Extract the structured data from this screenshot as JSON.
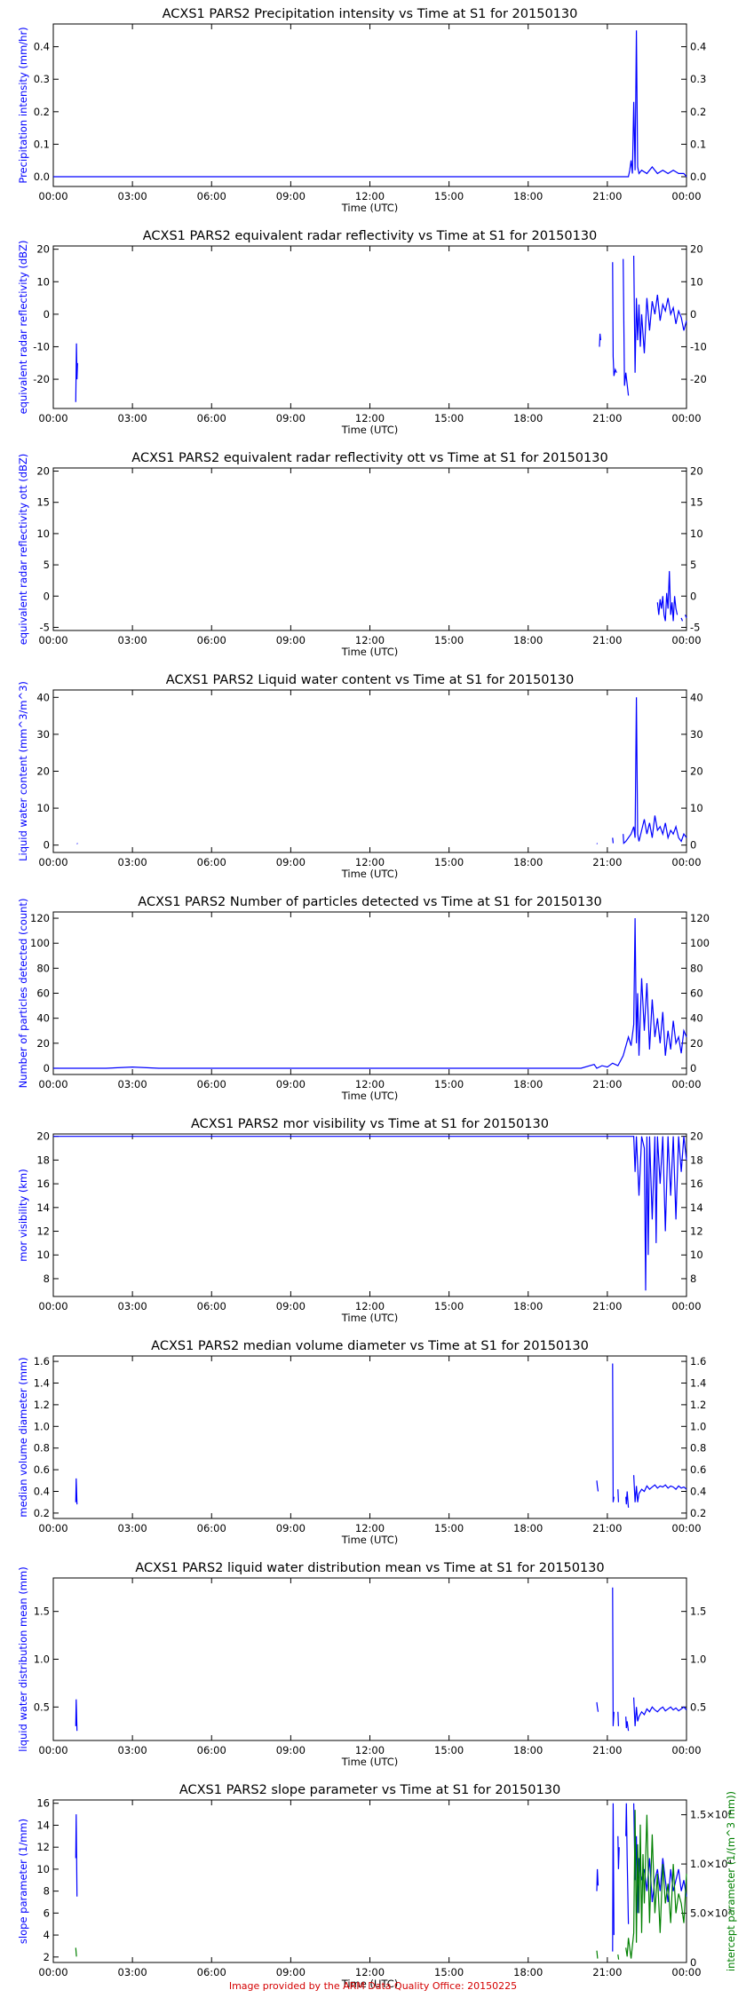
{
  "colors": {
    "primary": "#0000ff",
    "secondary": "#008000",
    "axis": "#000000",
    "footer": "#d40000"
  },
  "x_ticks": [
    "00:00",
    "03:00",
    "06:00",
    "09:00",
    "12:00",
    "15:00",
    "18:00",
    "21:00",
    "00:00"
  ],
  "footer": "Image provided by the ARM Data Quality Office: 20150225",
  "chart_data": [
    {
      "type": "line",
      "title": "ACXS1 PARS2 Precipitation intensity vs Time at S1 for 20150130",
      "xlabel": "Time (UTC)",
      "ylabel": "Precipitation intensity (mm/hr)",
      "xlim": [
        0,
        24
      ],
      "ylim": [
        -0.03,
        0.47
      ],
      "yticks": [
        0.0,
        0.1,
        0.2,
        0.3,
        0.4
      ],
      "ytick_labels": [
        "0.0",
        "0.1",
        "0.2",
        "0.3",
        "0.4"
      ],
      "series": [
        {
          "x": [
            0,
            21.8,
            21.85,
            21.9,
            21.95,
            22.0,
            22.05,
            22.1,
            22.15,
            22.2,
            22.3,
            22.5,
            22.7,
            22.9,
            23.1,
            23.3,
            23.5,
            23.7,
            23.9,
            24.0
          ],
          "y": [
            0,
            0,
            0.02,
            0.05,
            0.01,
            0.23,
            0.02,
            0.45,
            0.03,
            0.01,
            0.02,
            0.01,
            0.03,
            0.01,
            0.02,
            0.01,
            0.02,
            0.01,
            0.01,
            0.0
          ]
        }
      ]
    },
    {
      "type": "line",
      "title": "ACXS1 PARS2 equivalent radar reflectivity vs Time at S1 for 20150130",
      "xlabel": "Time (UTC)",
      "ylabel": "equivalent radar reflectivity (dBZ)",
      "xlim": [
        0,
        24
      ],
      "ylim": [
        -29,
        21
      ],
      "yticks": [
        -20,
        -10,
        0,
        10,
        20
      ],
      "ytick_labels": [
        "-20",
        "-10",
        "0",
        "10",
        "20"
      ],
      "series": [
        {
          "x": [
            0.85,
            0.88,
            0.9,
            0.92,
            null,
            20.7,
            20.72,
            20.75,
            null,
            21.2,
            21.22,
            21.25,
            21.3,
            21.35,
            null,
            21.6,
            21.65,
            21.7,
            21.8,
            null,
            22.0,
            22.05,
            22.1,
            22.15,
            22.2,
            22.25,
            22.3,
            22.4,
            22.5,
            22.6,
            22.7,
            22.8,
            22.9,
            23.0,
            23.1,
            23.2,
            23.3,
            23.4,
            23.5,
            23.6,
            23.7,
            23.8,
            23.9,
            24.0
          ],
          "y": [
            -27,
            -9,
            -20,
            -15,
            null,
            -10,
            -6,
            -8,
            null,
            16,
            -13,
            -19,
            -17,
            -18,
            null,
            17,
            -22,
            -18,
            -25,
            null,
            18,
            -18,
            5,
            -8,
            3,
            -10,
            0,
            -12,
            5,
            -5,
            4,
            0,
            6,
            -2,
            3,
            1,
            5,
            0,
            2,
            -3,
            1,
            -1,
            -5,
            -2
          ]
        }
      ]
    },
    {
      "type": "line",
      "title": "ACXS1 PARS2 equivalent radar reflectivity ott vs Time at S1 for 20150130",
      "xlabel": "Time (UTC)",
      "ylabel": "equivalent radar reflectivity ott (dBZ)",
      "xlim": [
        0,
        24
      ],
      "ylim": [
        -5.5,
        20.5
      ],
      "yticks": [
        -5,
        0,
        5,
        10,
        15,
        20
      ],
      "ytick_labels": [
        "-5",
        "0",
        "5",
        "10",
        "15",
        "20"
      ],
      "series": [
        {
          "x": [
            22.9,
            22.95,
            23.0,
            23.05,
            23.1,
            23.15,
            23.2,
            23.25,
            23.3,
            23.35,
            23.4,
            23.45,
            23.5,
            23.55,
            23.6,
            23.65,
            null,
            23.8,
            23.85,
            null,
            23.95,
            24.0
          ],
          "y": [
            -1,
            -3,
            -0.5,
            -2,
            0,
            -3,
            -4,
            0.5,
            -2,
            4,
            -3,
            -1,
            -4,
            0,
            -2,
            -3,
            null,
            -3.5,
            -4,
            null,
            -3,
            -3.5
          ]
        }
      ]
    },
    {
      "type": "line",
      "title": "ACXS1 PARS2 Liquid water content vs Time at S1 for 20150130",
      "xlabel": "Time (UTC)",
      "ylabel": "Liquid water content (mm^3/m^3)",
      "xlim": [
        0,
        24
      ],
      "ylim": [
        -2,
        42
      ],
      "yticks": [
        0,
        10,
        20,
        30,
        40
      ],
      "ytick_labels": [
        "0",
        "10",
        "20",
        "30",
        "40"
      ],
      "series": [
        {
          "x": [
            0.9,
            0.92,
            null,
            20.6,
            20.62,
            null,
            21.2,
            21.22,
            null,
            21.6,
            21.62,
            21.7,
            21.8,
            21.9,
            22.0,
            22.05,
            22.1,
            22.15,
            22.2,
            22.3,
            22.4,
            22.5,
            22.6,
            22.7,
            22.8,
            22.9,
            23.0,
            23.1,
            23.2,
            23.3,
            23.4,
            23.5,
            23.6,
            23.7,
            23.8,
            23.9,
            24.0
          ],
          "y": [
            0.5,
            0.3,
            null,
            0.5,
            0.3,
            null,
            2,
            0.5,
            null,
            3,
            0.5,
            1,
            2,
            3,
            5,
            2,
            40,
            3,
            1,
            4,
            7,
            3,
            6,
            2,
            8,
            4,
            5,
            3,
            6,
            2,
            4,
            3,
            5,
            2,
            1,
            3,
            2
          ]
        }
      ]
    },
    {
      "type": "line",
      "title": "ACXS1 PARS2 Number of particles detected vs Time at S1 for 20150130",
      "xlabel": "Time (UTC)",
      "ylabel": "Number of particles detected (count)",
      "xlim": [
        0,
        24
      ],
      "ylim": [
        -5,
        125
      ],
      "yticks": [
        0,
        20,
        40,
        60,
        80,
        100,
        120
      ],
      "ytick_labels": [
        "0",
        "20",
        "40",
        "60",
        "80",
        "100",
        "120"
      ],
      "series": [
        {
          "x": [
            0,
            2,
            3,
            4,
            20,
            20.5,
            20.6,
            20.8,
            21.0,
            21.2,
            21.4,
            21.6,
            21.8,
            21.9,
            22.0,
            22.05,
            22.1,
            22.15,
            22.2,
            22.3,
            22.4,
            22.5,
            22.6,
            22.7,
            22.8,
            22.9,
            23.0,
            23.1,
            23.2,
            23.3,
            23.4,
            23.5,
            23.6,
            23.7,
            23.8,
            23.9,
            24.0
          ],
          "y": [
            0,
            0,
            1,
            0,
            0,
            3,
            0,
            2,
            1,
            4,
            2,
            10,
            25,
            18,
            35,
            120,
            20,
            60,
            10,
            72,
            30,
            68,
            15,
            55,
            25,
            40,
            20,
            45,
            10,
            30,
            15,
            38,
            20,
            25,
            12,
            30,
            25
          ]
        }
      ]
    },
    {
      "type": "line",
      "title": "ACXS1 PARS2 mor visibility vs Time at S1 for 20150130",
      "xlabel": "Time (UTC)",
      "ylabel": "mor visibility (km)",
      "xlim": [
        0,
        24
      ],
      "ylim": [
        6.5,
        20.2
      ],
      "yticks": [
        8,
        10,
        12,
        14,
        16,
        18,
        20
      ],
      "ytick_labels": [
        "8",
        "10",
        "12",
        "14",
        "16",
        "18",
        "20"
      ],
      "series": [
        {
          "x": [
            0,
            22.0,
            22.05,
            22.1,
            22.2,
            22.3,
            22.4,
            22.45,
            22.5,
            22.55,
            22.6,
            22.7,
            22.8,
            22.85,
            22.9,
            23.0,
            23.1,
            23.2,
            23.3,
            23.4,
            23.5,
            23.6,
            23.7,
            23.8,
            23.9,
            24.0
          ],
          "y": [
            20,
            20,
            17,
            20,
            15,
            20,
            19,
            7,
            20,
            10,
            20,
            13,
            20,
            11,
            20,
            16,
            20,
            12,
            20,
            15,
            20,
            13,
            20,
            17,
            20,
            18
          ]
        }
      ]
    },
    {
      "type": "line",
      "title": "ACXS1 PARS2 median volume diameter vs Time at S1 for 20150130",
      "xlabel": "Time (UTC)",
      "ylabel": "median volume diameter (mm)",
      "xlim": [
        0,
        24
      ],
      "ylim": [
        0.15,
        1.65
      ],
      "yticks": [
        0.2,
        0.4,
        0.6,
        0.8,
        1.0,
        1.2,
        1.4,
        1.6
      ],
      "ytick_labels": [
        "0.2",
        "0.4",
        "0.6",
        "0.8",
        "1.0",
        "1.2",
        "1.4",
        "1.6"
      ],
      "series": [
        {
          "x": [
            0.85,
            0.87,
            0.9,
            null,
            20.6,
            20.62,
            20.65,
            null,
            21.2,
            21.22,
            21.25,
            null,
            21.4,
            21.42,
            null,
            21.7,
            21.72,
            21.75,
            21.8,
            null,
            22.0,
            22.05,
            22.1,
            22.15,
            22.2,
            22.3,
            22.4,
            22.5,
            22.6,
            22.7,
            22.8,
            22.9,
            23.0,
            23.1,
            23.2,
            23.3,
            23.4,
            23.5,
            23.6,
            23.7,
            23.8,
            23.9,
            24.0
          ],
          "y": [
            0.3,
            0.52,
            0.28,
            null,
            0.5,
            0.45,
            0.4,
            null,
            1.58,
            0.3,
            0.35,
            null,
            0.42,
            0.3,
            null,
            0.35,
            0.28,
            0.4,
            0.25,
            null,
            0.55,
            0.3,
            0.45,
            0.3,
            0.38,
            0.42,
            0.4,
            0.45,
            0.42,
            0.44,
            0.46,
            0.43,
            0.45,
            0.44,
            0.46,
            0.43,
            0.45,
            0.44,
            0.42,
            0.45,
            0.43,
            0.44,
            0.42
          ]
        }
      ]
    },
    {
      "type": "line",
      "title": "ACXS1 PARS2 liquid water distribution mean vs Time at S1 for 20150130",
      "xlabel": "Time (UTC)",
      "ylabel": "liquid water distribution mean (mm)",
      "xlim": [
        0,
        24
      ],
      "ylim": [
        0.15,
        1.85
      ],
      "yticks": [
        0.5,
        1.0,
        1.5
      ],
      "ytick_labels": [
        "0.5",
        "1.0",
        "1.5"
      ],
      "series": [
        {
          "x": [
            0.85,
            0.87,
            0.9,
            null,
            20.6,
            20.62,
            20.65,
            null,
            21.2,
            21.22,
            21.25,
            null,
            21.4,
            21.42,
            null,
            21.7,
            21.72,
            21.75,
            21.8,
            null,
            22.0,
            22.05,
            22.1,
            22.15,
            22.2,
            22.3,
            22.4,
            22.5,
            22.6,
            22.7,
            22.8,
            22.9,
            23.0,
            23.1,
            23.2,
            23.3,
            23.4,
            23.5,
            23.6,
            23.7,
            23.8,
            23.9,
            24.0
          ],
          "y": [
            0.3,
            0.58,
            0.25,
            null,
            0.55,
            0.5,
            0.45,
            null,
            1.75,
            0.3,
            0.45,
            null,
            0.45,
            0.3,
            null,
            0.4,
            0.28,
            0.35,
            0.25,
            null,
            0.6,
            0.3,
            0.5,
            0.35,
            0.4,
            0.45,
            0.42,
            0.48,
            0.45,
            0.5,
            0.47,
            0.45,
            0.48,
            0.5,
            0.46,
            0.48,
            0.5,
            0.47,
            0.49,
            0.46,
            0.48,
            0.5,
            0.47
          ]
        }
      ]
    },
    {
      "type": "line",
      "title": "ACXS1 PARS2 slope parameter vs Time at S1 for 20150130",
      "xlabel": "Time (UTC)",
      "ylabel": "slope parameter (1/mm)",
      "ylabel_right": "intercept parameter (1/(m^3 mm))",
      "xlim": [
        0,
        24
      ],
      "ylim": [
        1.5,
        16.3
      ],
      "yticks": [
        2,
        4,
        6,
        8,
        10,
        12,
        14,
        16
      ],
      "ytick_labels": [
        "2",
        "4",
        "6",
        "8",
        "10",
        "12",
        "14",
        "16"
      ],
      "ylim_right": [
        0,
        16500
      ],
      "yticks_right": [
        0,
        5000,
        10000,
        15000
      ],
      "ytick_labels_right": [
        "0",
        "5.0×10³",
        "1.0×10⁴",
        "1.5×10⁴"
      ],
      "series": [
        {
          "axis": "left",
          "color": "primary",
          "x": [
            0.85,
            0.87,
            0.9,
            null,
            20.6,
            20.62,
            20.65,
            null,
            21.2,
            21.22,
            21.25,
            null,
            21.4,
            21.42,
            21.45,
            null,
            21.7,
            21.72,
            21.75,
            21.8,
            null,
            22.0,
            22.05,
            22.1,
            22.15,
            22.2,
            22.3,
            22.4,
            22.5,
            22.6,
            22.7,
            22.8,
            22.9,
            23.0,
            23.1,
            23.2,
            23.3,
            23.4,
            23.5,
            23.6,
            23.7,
            23.8,
            23.9,
            24.0
          ],
          "y": [
            11,
            15,
            7.5,
            null,
            8,
            10,
            8.5,
            null,
            2.5,
            16,
            4,
            null,
            13,
            10,
            12,
            null,
            13,
            16,
            11,
            5,
            null,
            16,
            9,
            13,
            6,
            11,
            9,
            10,
            8,
            11,
            7,
            9,
            10,
            8,
            11,
            9,
            7,
            10,
            8,
            9,
            10,
            8,
            9,
            7.5
          ]
        },
        {
          "axis": "right",
          "color": "secondary",
          "x": [
            0.85,
            0.88,
            null,
            20.6,
            20.63,
            null,
            21.4,
            21.43,
            null,
            21.7,
            21.75,
            21.8,
            21.9,
            22.0,
            22.05,
            22.1,
            22.15,
            22.2,
            22.25,
            22.3,
            22.35,
            22.4,
            22.5,
            22.6,
            22.7,
            22.8,
            22.9,
            23.0,
            23.1,
            23.2,
            23.3,
            23.4,
            23.5,
            23.6,
            23.7,
            23.8,
            23.9,
            24.0
          ],
          "y": [
            1500,
            600,
            null,
            1200,
            400,
            null,
            800,
            300,
            null,
            1500,
            600,
            2500,
            400,
            3000,
            15500,
            2000,
            12000,
            5000,
            14000,
            3000,
            11000,
            6000,
            15000,
            4000,
            13000,
            5000,
            9000,
            3000,
            10000,
            6000,
            8000,
            4000,
            10000,
            5000,
            7000,
            6000,
            4000,
            9000
          ]
        }
      ]
    }
  ]
}
